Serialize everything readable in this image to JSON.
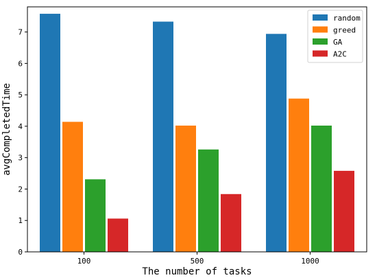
{
  "chart_data": {
    "type": "bar",
    "categories": [
      "100",
      "500",
      "1000"
    ],
    "series": [
      {
        "name": "random",
        "color": "#1f77b4",
        "values": [
          7.58,
          7.33,
          6.94
        ]
      },
      {
        "name": "greed",
        "color": "#ff7f0e",
        "values": [
          4.14,
          4.02,
          4.88
        ]
      },
      {
        "name": "GA",
        "color": "#2ca02c",
        "values": [
          2.31,
          3.26,
          4.02
        ]
      },
      {
        "name": "A2C",
        "color": "#d62728",
        "values": [
          1.06,
          1.84,
          2.58
        ]
      }
    ],
    "xlabel": "The number of tasks",
    "ylabel": "avgCompletedTime",
    "ylim": [
      0,
      7.8
    ],
    "yticks": [
      "0",
      "1",
      "2",
      "3",
      "4",
      "5",
      "6",
      "7"
    ],
    "grid": false,
    "legend_position": "top-right"
  }
}
